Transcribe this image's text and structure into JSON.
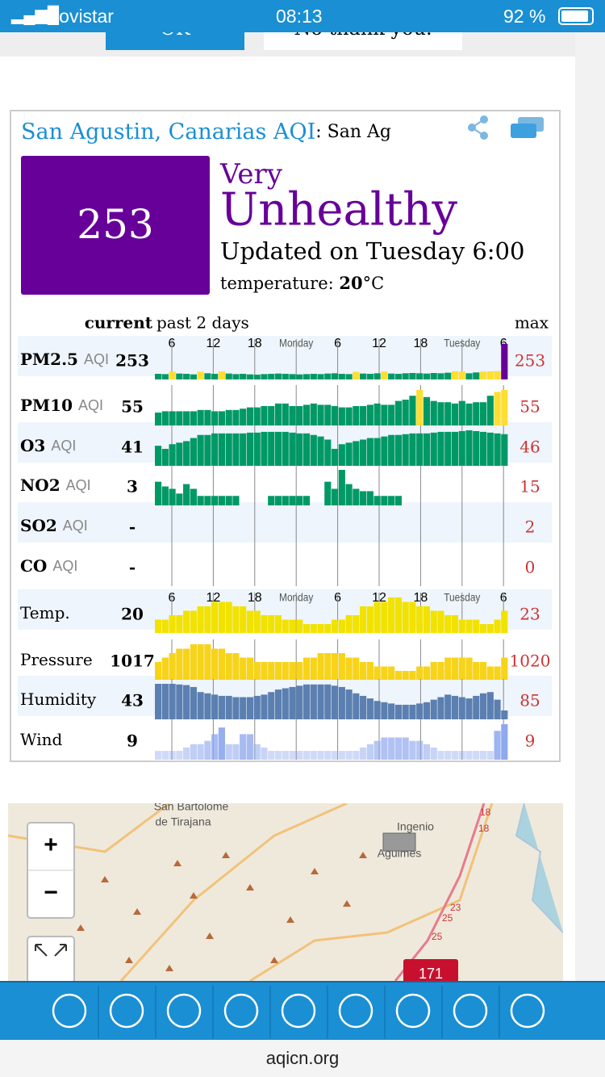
{
  "status_bar": {
    "carrier": "Movistar",
    "time": "08:13",
    "battery": "92 %"
  },
  "banner": {
    "ok_button": "OK",
    "decline_button": "No thank you."
  },
  "card": {
    "city": "San Agustin, Canarias",
    "aqi_label": "AQI",
    "station": ": San Ag",
    "aqi": "253",
    "level_1": "Very",
    "level_2": "Unhealthy",
    "updated": "Updated on Tuesday 6:00",
    "temperature_label": "temperature:",
    "temperature": "20",
    "temperature_unit": "°C"
  },
  "aqi_table": {
    "header_current": "current",
    "header_past": "past 2 days",
    "header_max": "max",
    "time_labels": [
      "6",
      "12",
      "18",
      "Monday",
      "6",
      "12",
      "18",
      "Tuesday",
      "6"
    ],
    "rows": [
      {
        "name": "PM2.5",
        "unit": "AQI",
        "current": "253",
        "max": "253",
        "values": [
          40,
          38,
          55,
          42,
          40,
          36,
          55,
          44,
          40,
          58,
          42,
          38,
          40,
          36,
          34,
          38,
          40,
          42,
          40,
          38,
          36,
          38,
          40,
          38,
          42,
          44,
          40,
          38,
          55,
          42,
          40,
          44,
          56,
          42,
          40,
          44,
          46,
          44,
          42,
          46,
          44,
          48,
          58,
          56,
          44,
          50,
          56,
          58,
          60,
          253
        ]
      },
      {
        "name": "PM10",
        "unit": "AQI",
        "current": "55",
        "max": "55",
        "values": [
          20,
          22,
          22,
          22,
          22,
          22,
          24,
          24,
          22,
          22,
          24,
          24,
          26,
          28,
          28,
          30,
          30,
          34,
          34,
          30,
          30,
          32,
          34,
          32,
          32,
          30,
          28,
          28,
          30,
          30,
          32,
          34,
          32,
          32,
          38,
          40,
          46,
          55,
          44,
          38,
          36,
          36,
          34,
          38,
          34,
          36,
          36,
          46,
          52,
          55
        ]
      },
      {
        "name": "O3",
        "unit": "AQI",
        "current": "41",
        "max": "46",
        "values": [
          26,
          22,
          28,
          30,
          32,
          36,
          40,
          40,
          42,
          42,
          42,
          42,
          42,
          43,
          43,
          44,
          44,
          44,
          44,
          43,
          42,
          42,
          40,
          38,
          34,
          22,
          28,
          30,
          32,
          34,
          36,
          36,
          38,
          40,
          40,
          41,
          42,
          42,
          42,
          43,
          44,
          44,
          44,
          45,
          46,
          45,
          44,
          43,
          42,
          41
        ]
      },
      {
        "name": "NO2",
        "unit": "AQI",
        "current": "3",
        "max": "15",
        "values": [
          10,
          8,
          7,
          5,
          9,
          7,
          4,
          4,
          4,
          4,
          4,
          4,
          null,
          null,
          null,
          null,
          4,
          4,
          4,
          4,
          4,
          4,
          null,
          null,
          10,
          7,
          15,
          9,
          7,
          6,
          6,
          4,
          4,
          4,
          4,
          null,
          null,
          null,
          null,
          null,
          null,
          null,
          null,
          null,
          null,
          null,
          null,
          null,
          null,
          null
        ]
      },
      {
        "name": "SO2",
        "unit": "AQI",
        "current": "-",
        "max": "2"
      },
      {
        "name": "CO",
        "unit": "AQI",
        "current": "-",
        "max": "0"
      },
      {
        "name": "Temp.",
        "current": "20",
        "max": "23",
        "color": "#f2e200",
        "values": [
          18,
          18,
          19,
          19,
          20,
          20,
          21,
          21,
          22,
          22,
          22,
          21,
          21,
          20,
          20,
          19,
          19,
          19,
          18,
          18,
          18,
          17,
          17,
          17,
          17,
          18,
          18,
          19,
          19,
          21,
          21,
          22,
          22,
          23,
          23,
          22,
          22,
          21,
          21,
          20,
          20,
          19,
          19,
          18,
          18,
          18,
          17,
          17,
          18,
          20
        ]
      },
      {
        "name": "Pressure",
        "current": "1017",
        "max": "1020",
        "color": "#f7d31a",
        "values": [
          1016,
          1017,
          1018,
          1019,
          1019,
          1020,
          1020,
          1020,
          1019,
          1019,
          1018,
          1018,
          1017,
          1017,
          1016,
          1016,
          1016,
          1016,
          1016,
          1016,
          1016,
          1017,
          1017,
          1018,
          1018,
          1018,
          1018,
          1017,
          1017,
          1016,
          1016,
          1015,
          1015,
          1015,
          1014,
          1014,
          1014,
          1015,
          1015,
          1016,
          1016,
          1017,
          1017,
          1017,
          1017,
          1016,
          1016,
          1015,
          1015,
          1017
        ]
      },
      {
        "name": "Humidity",
        "current": "43",
        "max": "85",
        "color": "#5b7fb0",
        "values": [
          85,
          85,
          85,
          84,
          83,
          80,
          72,
          70,
          68,
          66,
          66,
          64,
          64,
          64,
          66,
          68,
          72,
          76,
          78,
          80,
          82,
          84,
          84,
          84,
          84,
          82,
          80,
          76,
          70,
          66,
          62,
          58,
          56,
          54,
          52,
          52,
          52,
          54,
          56,
          60,
          64,
          68,
          66,
          64,
          62,
          66,
          70,
          72,
          60,
          43
        ]
      },
      {
        "name": "Wind",
        "current": "9",
        "max": "9",
        "color": "#8fa8ee",
        "values": [
          1,
          1,
          1,
          1,
          2,
          3,
          3,
          4,
          6,
          8,
          3,
          3,
          6,
          6,
          3,
          2,
          1,
          1,
          1,
          1,
          1,
          1,
          1,
          1,
          1,
          1,
          1,
          1,
          1,
          2,
          3,
          4,
          5,
          5,
          5,
          5,
          4,
          4,
          3,
          2,
          1,
          1,
          1,
          1,
          1,
          1,
          1,
          1,
          7,
          9
        ]
      }
    ]
  },
  "map": {
    "place_1": "San Bartolome",
    "place_1b": "de Tirajana",
    "place_2": "Ingenio",
    "place_3": "Agüimes",
    "roads": [
      "18",
      "18",
      "23",
      "25",
      "25"
    ],
    "marker": "171",
    "zoom_in": "+",
    "zoom_out": "−"
  },
  "footer": {
    "url": "aqicn.org"
  }
}
